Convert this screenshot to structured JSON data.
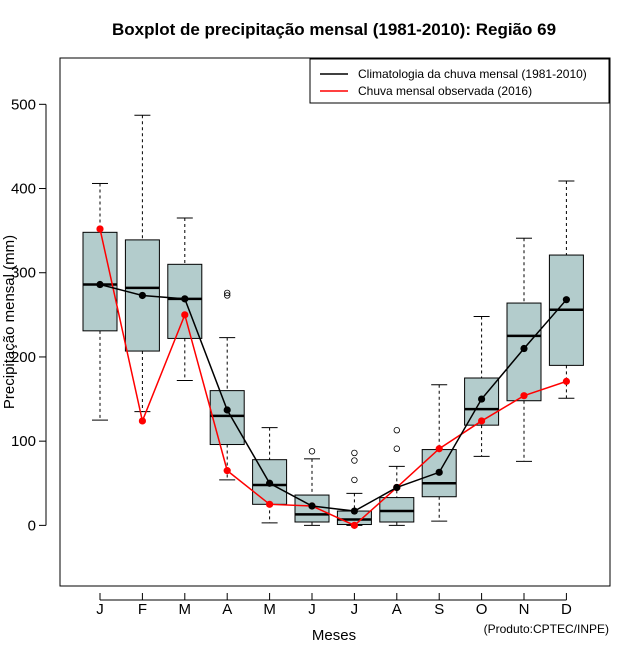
{
  "chart_data": {
    "type": "boxplot",
    "title": "Boxplot de precipitação mensal (1981-2010): Região 69",
    "xlabel": "Meses",
    "ylabel": "Precipitação mensal (mm)",
    "ylim": [
      -72,
      555
    ],
    "yticks": [
      0,
      100,
      200,
      300,
      400,
      500
    ],
    "categories": [
      "J",
      "F",
      "M",
      "A",
      "M",
      "J",
      "J",
      "A",
      "S",
      "O",
      "N",
      "D"
    ],
    "boxes": [
      {
        "whisker_low": 125,
        "q1": 231,
        "median": 286,
        "q3": 348,
        "whisker_high": 406,
        "outliers": []
      },
      {
        "whisker_low": 135,
        "q1": 207,
        "median": 282,
        "q3": 339,
        "whisker_high": 487,
        "outliers": []
      },
      {
        "whisker_low": 172,
        "q1": 222,
        "median": 269,
        "q3": 310,
        "whisker_high": 365,
        "outliers": []
      },
      {
        "whisker_low": 54,
        "q1": 96,
        "median": 130,
        "q3": 160,
        "whisker_high": 223,
        "outliers": [
          273,
          276
        ]
      },
      {
        "whisker_low": 3,
        "q1": 25,
        "median": 48,
        "q3": 78,
        "whisker_high": 116,
        "outliers": []
      },
      {
        "whisker_low": 0,
        "q1": 4,
        "median": 13,
        "q3": 36,
        "whisker_high": 79,
        "outliers": [
          88
        ]
      },
      {
        "whisker_low": 0,
        "q1": 1,
        "median": 7,
        "q3": 17,
        "whisker_high": 38,
        "outliers": [
          54,
          77,
          86
        ]
      },
      {
        "whisker_low": 0,
        "q1": 4,
        "median": 17,
        "q3": 33,
        "whisker_high": 70,
        "outliers": [
          91,
          113
        ]
      },
      {
        "whisker_low": 5,
        "q1": 34,
        "median": 50,
        "q3": 90,
        "whisker_high": 167,
        "outliers": []
      },
      {
        "whisker_low": 82,
        "q1": 119,
        "median": 138,
        "q3": 175,
        "whisker_high": 248,
        "outliers": []
      },
      {
        "whisker_low": 76,
        "q1": 148,
        "median": 225,
        "q3": 264,
        "whisker_high": 341,
        "outliers": []
      },
      {
        "whisker_low": 151,
        "q1": 190,
        "median": 256,
        "q3": 321,
        "whisker_high": 409,
        "outliers": []
      }
    ],
    "series": [
      {
        "name": "Climatologia da chuva mensal (1981-2010)",
        "color": "#000000",
        "values": [
          286,
          273,
          269,
          137,
          50,
          23,
          17,
          45,
          63,
          150,
          210,
          268
        ]
      },
      {
        "name": "Chuva mensal observada (2016)",
        "color": "#ff0000",
        "values": [
          352,
          124,
          250,
          65,
          25,
          23,
          0,
          45,
          91,
          124,
          154,
          171
        ]
      }
    ],
    "legend_position": "top-right",
    "box_fill": "#b3cccc",
    "credit": "(Produto:CPTEC/INPE)"
  }
}
